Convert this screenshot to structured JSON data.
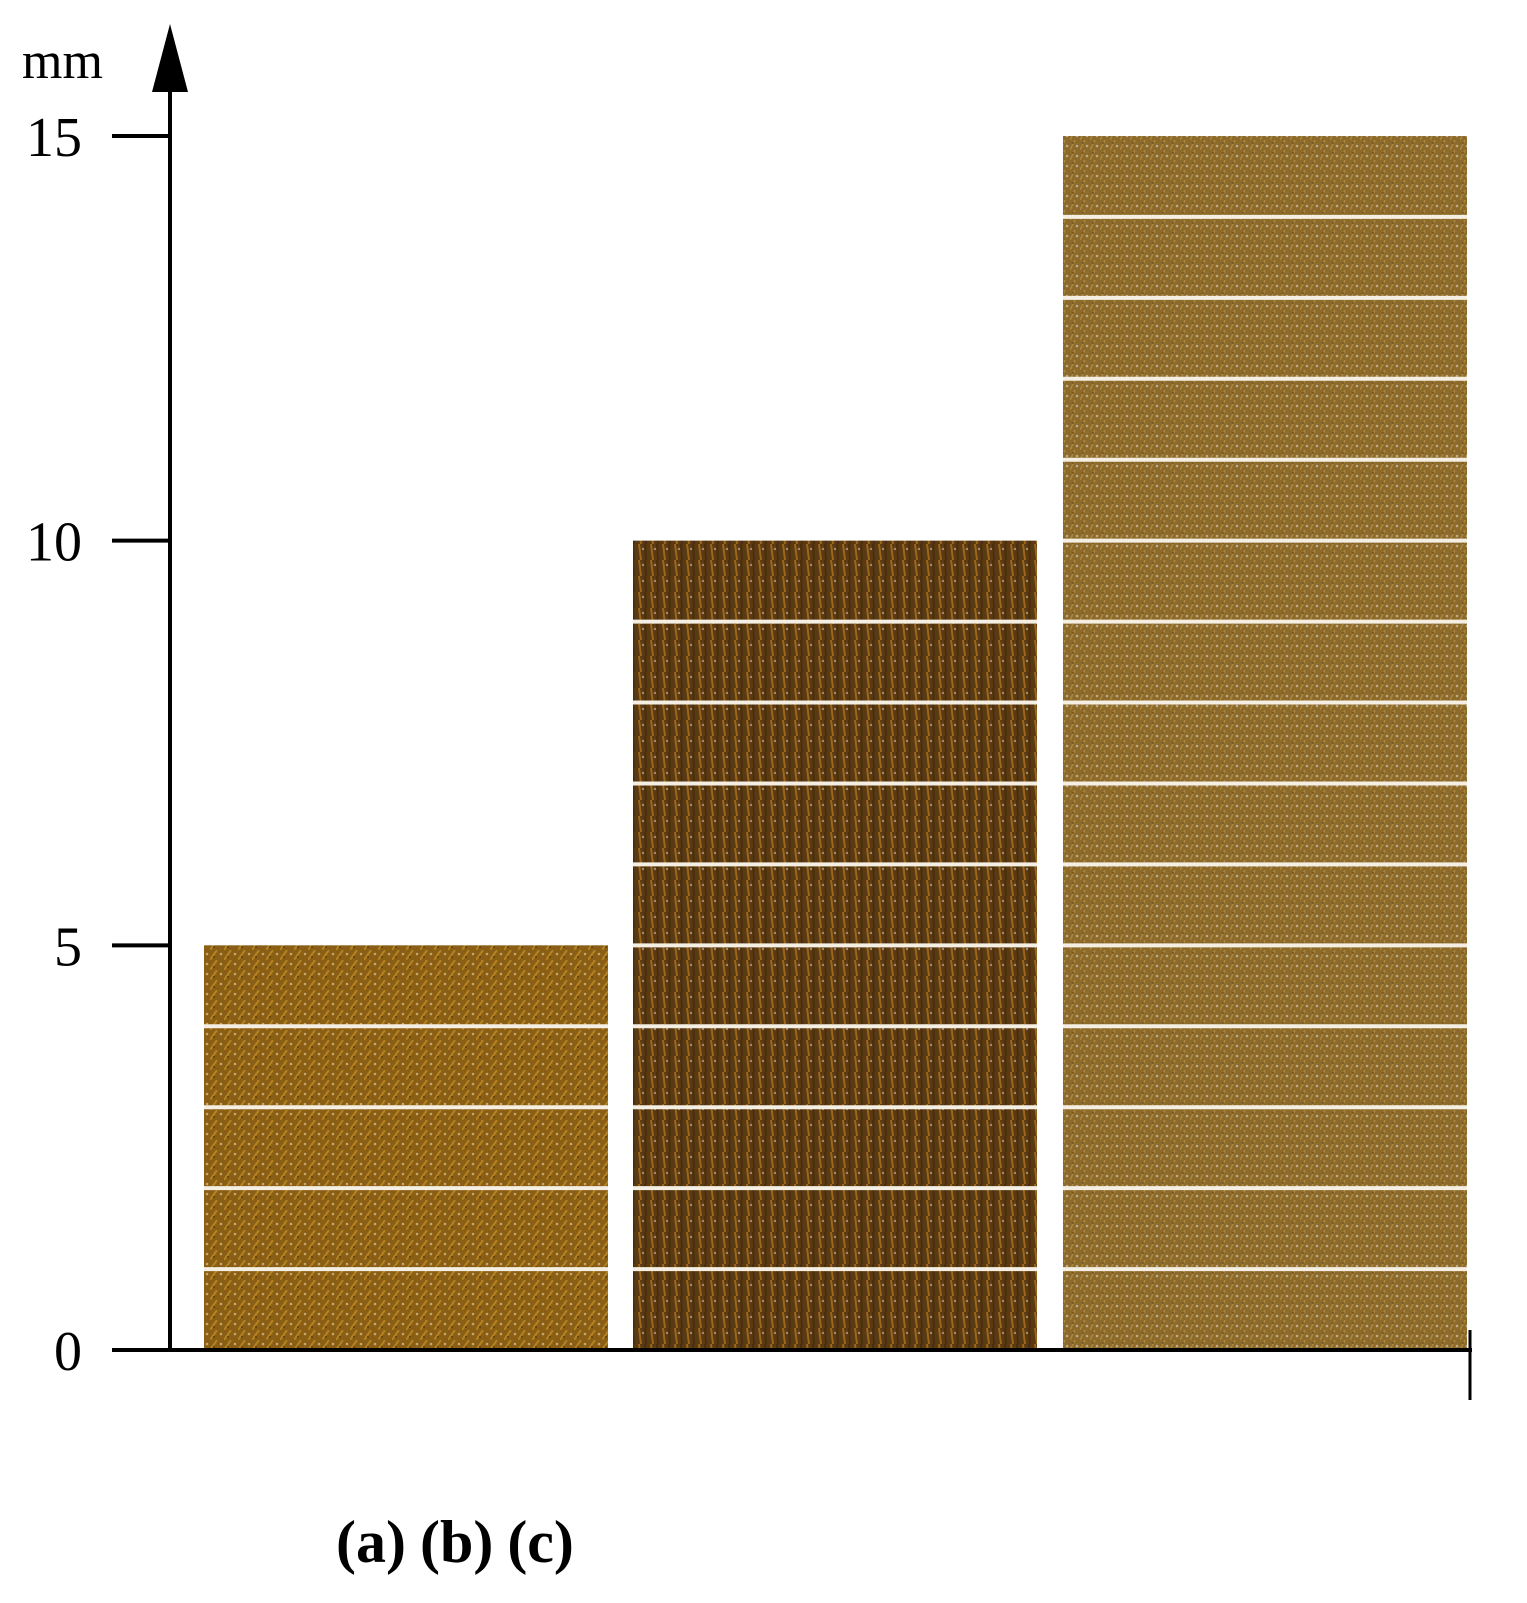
{
  "chart_data": {
    "type": "bar",
    "categories": [
      "(a)",
      "(b)",
      "(c)"
    ],
    "values": [
      5,
      10,
      15
    ],
    "ylabel": "mm",
    "ylim": [
      0,
      15
    ],
    "yticks": [
      "0",
      "5",
      "10",
      "15"
    ],
    "grid": false,
    "layer_lines_every_mm": 1,
    "bar_fill_colors": [
      "#8a5e14",
      "#5a3a12",
      "#8c6a2c"
    ]
  }
}
